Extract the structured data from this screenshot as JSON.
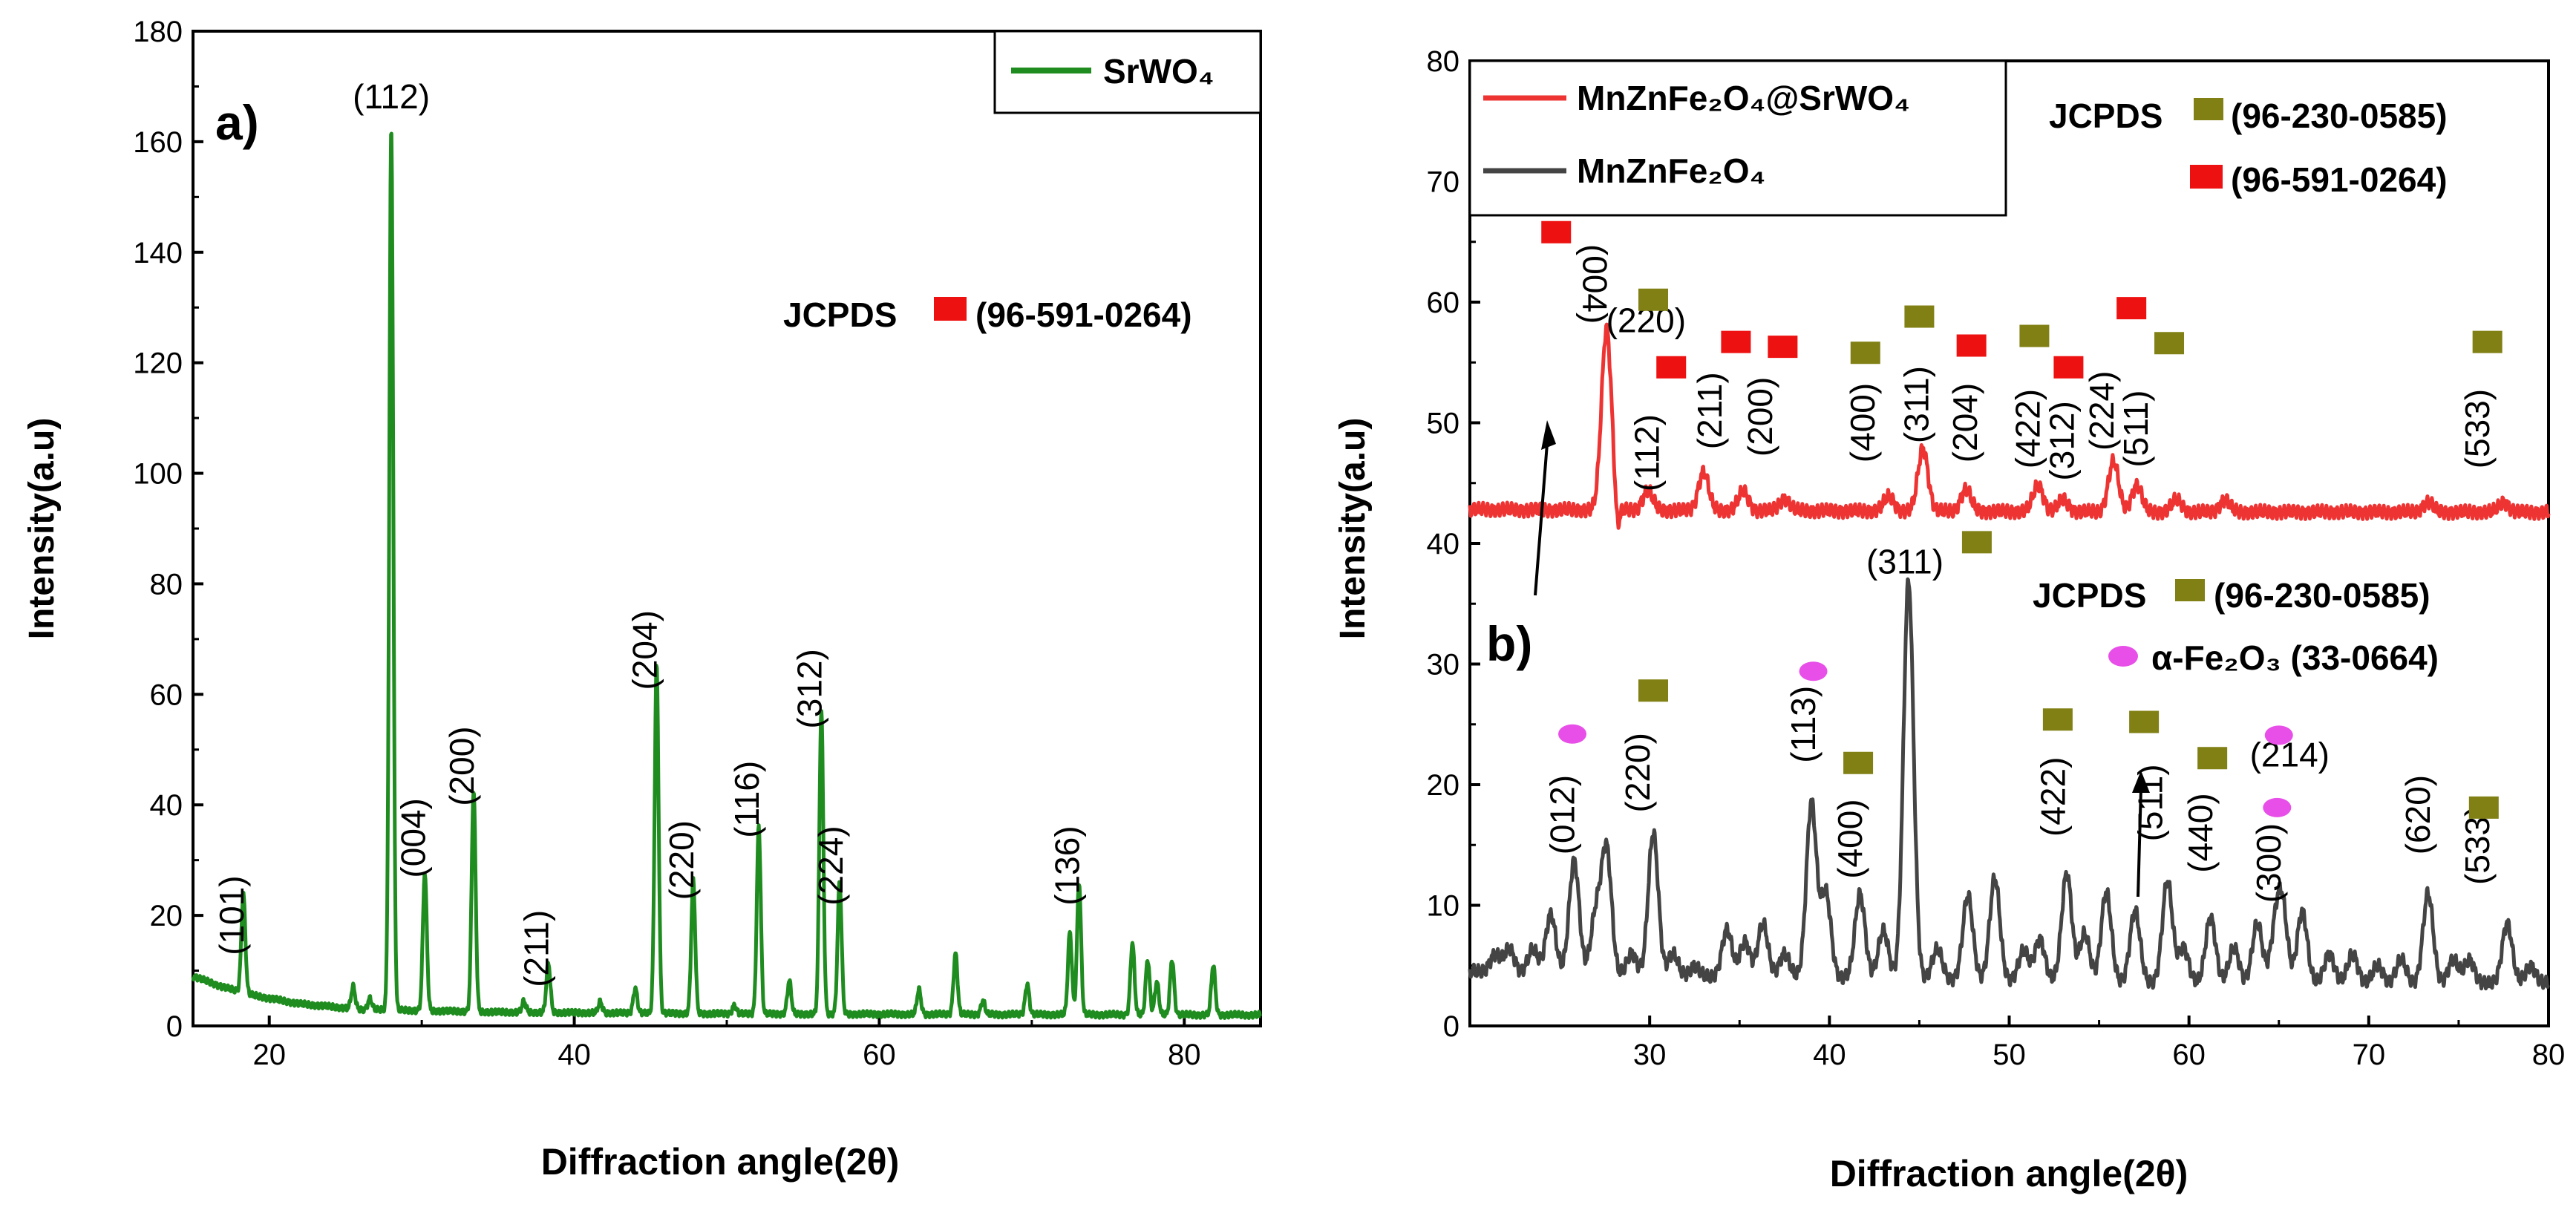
{
  "chart_data": [
    {
      "type": "line",
      "panel_label": "a)",
      "xlabel": "Diffraction angle(2θ)",
      "ylabel": "Intensity(a.u)",
      "xlim": [
        15,
        85
      ],
      "ylim": [
        0,
        180
      ],
      "xticks": [
        20,
        40,
        60,
        80
      ],
      "yticks": [
        0,
        20,
        40,
        60,
        80,
        100,
        120,
        140,
        160,
        180
      ],
      "grid": false,
      "legend_position": "top-right",
      "series": [
        {
          "name": "SrWO₄",
          "color": "#1f8c1f",
          "baseline": [
            [
              15,
              9
            ],
            [
              17,
              7
            ],
            [
              19,
              5.5
            ],
            [
              22,
              4
            ],
            [
              26,
              3
            ],
            [
              35,
              2.5
            ],
            [
              50,
              2.2
            ],
            [
              65,
              2.1
            ],
            [
              85,
              2
            ]
          ],
          "peaks": [
            [
              18.3,
              18
            ],
            [
              25.5,
              4
            ],
            [
              26.6,
              2
            ],
            [
              28.0,
              160
            ],
            [
              30.2,
              25
            ],
            [
              33.4,
              40
            ],
            [
              36.7,
              2
            ],
            [
              38.3,
              9
            ],
            [
              41.7,
              2
            ],
            [
              44.0,
              4.5
            ],
            [
              45.4,
              63
            ],
            [
              47.8,
              24
            ],
            [
              50.5,
              1.5
            ],
            [
              52.1,
              34
            ],
            [
              54.1,
              6
            ],
            [
              56.2,
              55
            ],
            [
              57.4,
              24
            ],
            [
              62.6,
              4.5
            ],
            [
              65.0,
              11
            ],
            [
              66.8,
              2.5
            ],
            [
              69.7,
              5.5
            ],
            [
              72.5,
              15
            ],
            [
              73.1,
              24
            ],
            [
              76.6,
              13
            ],
            [
              77.6,
              10
            ],
            [
              78.2,
              6
            ],
            [
              79.2,
              10
            ],
            [
              81.9,
              9
            ]
          ]
        }
      ],
      "annotations": [
        {
          "text": "(101)",
          "x": 18.3,
          "y": 20,
          "rot": -90
        },
        {
          "text": "(112)",
          "x": 28.0,
          "y": 166,
          "rot": 0
        },
        {
          "text": "(004)",
          "x": 30.2,
          "y": 34,
          "rot": -90
        },
        {
          "text": "(200)",
          "x": 33.4,
          "y": 47,
          "rot": -90
        },
        {
          "text": "(211)",
          "x": 38.3,
          "y": 14,
          "rot": -90
        },
        {
          "text": "(204)",
          "x": 45.4,
          "y": 68,
          "rot": -90
        },
        {
          "text": "(220)",
          "x": 47.8,
          "y": 30,
          "rot": -90
        },
        {
          "text": "(116)",
          "x": 52.1,
          "y": 41,
          "rot": -90
        },
        {
          "text": "(312)",
          "x": 56.2,
          "y": 61,
          "rot": -90
        },
        {
          "text": "(224)",
          "x": 57.6,
          "y": 29,
          "rot": -90
        },
        {
          "text": "(136)",
          "x": 73.1,
          "y": 29,
          "rot": -90
        }
      ],
      "reference": {
        "label": "JCPDS",
        "code": "(96-591-0264)",
        "marker_color": "#ee1111"
      }
    },
    {
      "type": "line",
      "panel_label": "b)",
      "xlabel": "Diffraction angle(2θ)",
      "ylabel": "Intensity(a.u)",
      "xlim": [
        20,
        80
      ],
      "ylim": [
        0,
        80
      ],
      "xticks": [
        30,
        40,
        50,
        60,
        70,
        80
      ],
      "yticks": [
        0,
        10,
        20,
        30,
        40,
        50,
        60,
        70,
        80
      ],
      "grid": false,
      "legend_position": "top-left",
      "series": [
        {
          "name": "MnZnFe₂O₄@SrWO₄",
          "color": "#ee3333",
          "baseline": [
            [
              20,
              42.8
            ],
            [
              40,
              42.7
            ],
            [
              60,
              42.6
            ],
            [
              80,
              42.6
            ]
          ],
          "peaks": [
            [
              27.6,
              15
            ],
            [
              29.9,
              1.6
            ],
            [
              33.0,
              3.2
            ],
            [
              35.2,
              1.6
            ],
            [
              37.5,
              1
            ],
            [
              43.3,
              1.2
            ],
            [
              45.2,
              5.2
            ],
            [
              47.6,
              1.8
            ],
            [
              51.6,
              2.2
            ],
            [
              53.0,
              1
            ],
            [
              55.8,
              4.2
            ],
            [
              57.1,
              2.2
            ],
            [
              59.3,
              1
            ],
            [
              62.0,
              1
            ],
            [
              73.3,
              0.8
            ],
            [
              77.5,
              0.8
            ]
          ],
          "dips": [
            [
              28.2,
              2.2
            ]
          ]
        },
        {
          "name": "MnZnFe₂O₄",
          "color": "#444444",
          "baseline": [
            [
              20,
              4.5
            ],
            [
              30,
              4
            ],
            [
              40,
              4
            ],
            [
              60,
              3.5
            ],
            [
              80,
              3.5
            ]
          ],
          "peaks": [
            [
              21.4,
              1.5
            ],
            [
              22.2,
              2
            ],
            [
              23.5,
              2
            ],
            [
              24.5,
              5
            ],
            [
              25.8,
              9.5
            ],
            [
              27.0,
              5
            ],
            [
              27.6,
              10.5
            ],
            [
              29.0,
              2
            ],
            [
              30.2,
              12
            ],
            [
              31.3,
              2
            ],
            [
              32.5,
              1
            ],
            [
              34.3,
              4
            ],
            [
              35.3,
              3
            ],
            [
              36.3,
              4.5
            ],
            [
              37.5,
              2
            ],
            [
              39.0,
              14.5
            ],
            [
              39.8,
              7
            ],
            [
              41.7,
              7
            ],
            [
              43.0,
              4
            ],
            [
              44.4,
              33
            ],
            [
              46.0,
              2.5
            ],
            [
              47.7,
              7
            ],
            [
              49.2,
              8.5
            ],
            [
              50.8,
              2.5
            ],
            [
              51.7,
              3.5
            ],
            [
              53.2,
              9
            ],
            [
              54.2,
              4
            ],
            [
              55.4,
              7.5
            ],
            [
              57.0,
              6
            ],
            [
              58.8,
              8.5
            ],
            [
              59.7,
              3
            ],
            [
              61.2,
              5.5
            ],
            [
              62.5,
              3
            ],
            [
              63.8,
              5
            ],
            [
              64.8,
              4
            ],
            [
              65.2,
              6
            ],
            [
              66.3,
              6
            ],
            [
              67.8,
              2.5
            ],
            [
              69.1,
              2.5
            ],
            [
              70.5,
              1.5
            ],
            [
              71.8,
              2
            ],
            [
              73.3,
              7.5
            ],
            [
              74.7,
              2
            ],
            [
              75.6,
              2
            ],
            [
              77.7,
              5
            ],
            [
              79.0,
              1.5
            ]
          ]
        }
      ],
      "annotations": [
        {
          "text": "(004)",
          "x": 26.3,
          "y": 61.5,
          "rot": 90
        },
        {
          "text": "(220)",
          "x": 29.8,
          "y": 57.5,
          "rot": 0
        },
        {
          "text": "(112)",
          "x": 30.5,
          "y": 47.5,
          "rot": -90
        },
        {
          "text": "(211)",
          "x": 34.0,
          "y": 51,
          "rot": -90
        },
        {
          "text": "(200)",
          "x": 36.8,
          "y": 50.5,
          "rot": -90
        },
        {
          "text": "(400)",
          "x": 42.5,
          "y": 50,
          "rot": -90
        },
        {
          "text": "(311)",
          "x": 45.5,
          "y": 51.5,
          "rot": -90
        },
        {
          "text": "(204)",
          "x": 48.2,
          "y": 50,
          "rot": -90
        },
        {
          "text": "(422)",
          "x": 51.7,
          "y": 49.5,
          "rot": -90
        },
        {
          "text": "(312)",
          "x": 53.6,
          "y": 48.5,
          "rot": -90
        },
        {
          "text": "(224)",
          "x": 55.8,
          "y": 51,
          "rot": -90
        },
        {
          "text": "(511)",
          "x": 57.7,
          "y": 49.5,
          "rot": -90
        },
        {
          "text": "(533)",
          "x": 76.7,
          "y": 49.5,
          "rot": -90
        },
        {
          "text": "(311)",
          "x": 44.2,
          "y": 37.5,
          "rot": 0
        },
        {
          "text": "(012)",
          "x": 25.8,
          "y": 17.5,
          "rot": -90
        },
        {
          "text": "(220)",
          "x": 30.0,
          "y": 21,
          "rot": -90
        },
        {
          "text": "(113)",
          "x": 39.2,
          "y": 25,
          "rot": -90
        },
        {
          "text": "(400)",
          "x": 41.8,
          "y": 15.5,
          "rot": -90
        },
        {
          "text": "(422)",
          "x": 53.1,
          "y": 19,
          "rot": -90
        },
        {
          "text": "(511)",
          "x": 58.5,
          "y": 18.5,
          "rot": -90
        },
        {
          "text": "(440)",
          "x": 61.3,
          "y": 16,
          "rot": -90
        },
        {
          "text": "(214)",
          "x": 65.6,
          "y": 21.5,
          "rot": 0
        },
        {
          "text": "(300)",
          "x": 65.1,
          "y": 13.5,
          "rot": -90
        },
        {
          "text": "(620)",
          "x": 73.4,
          "y": 17.5,
          "rot": -90
        },
        {
          "text": "(533)",
          "x": 76.7,
          "y": 15,
          "rot": -90
        }
      ],
      "markers": {
        "olive": [
          [
            30.2,
            60.2
          ],
          [
            42.0,
            55.8
          ],
          [
            45.0,
            58.8
          ],
          [
            51.4,
            57.2
          ],
          [
            58.9,
            56.6
          ],
          [
            76.6,
            56.7
          ],
          [
            48.2,
            40.1
          ],
          [
            30.2,
            27.8
          ],
          [
            41.6,
            21.8
          ],
          [
            52.7,
            25.4
          ],
          [
            57.5,
            25.2
          ],
          [
            61.3,
            22.2
          ],
          [
            76.4,
            18.1
          ]
        ],
        "red": [
          [
            24.8,
            65.8
          ],
          [
            31.2,
            54.6
          ],
          [
            34.8,
            56.7
          ],
          [
            37.4,
            56.3
          ],
          [
            47.9,
            56.4
          ],
          [
            53.3,
            54.6
          ],
          [
            56.8,
            59.5
          ]
        ],
        "magenta": [
          [
            25.7,
            24.2
          ],
          [
            39.1,
            29.4
          ],
          [
            65.0,
            24.1
          ],
          [
            64.9,
            18.1
          ]
        ]
      },
      "references": [
        {
          "label": "JCPDS",
          "code": "(96-230-0585)",
          "marker_color": "#808014"
        },
        {
          "code": "(96-591-0264)",
          "marker_color": "#ee1111"
        },
        {
          "label": "JCPDS",
          "code": "(96-230-0585)",
          "marker_color": "#808014"
        },
        {
          "code": "α-Fe₂O₃ (33-0664)",
          "marker_color": "#e84ee8"
        }
      ]
    }
  ]
}
